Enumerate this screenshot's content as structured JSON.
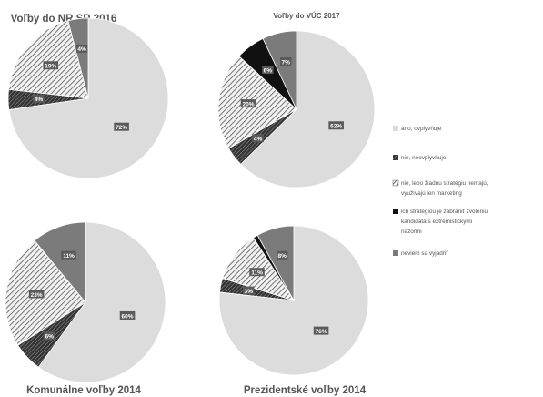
{
  "chart_data": [
    {
      "type": "pie",
      "title": "Voľby do NR SR 2016",
      "slices": [
        {
          "category": "áno, ovplyvňuje",
          "value": 72,
          "label": "72%"
        },
        {
          "category": "nie, neovplyvňuje",
          "value": 4,
          "label": "4%"
        },
        {
          "category": "nie, lebo žiadnu stratégiu nemajú, využívajú len marketing",
          "value": 19,
          "label": "19%"
        },
        {
          "category": "ich stratégiou je zabrániť zvoleniu kandidáta s extrémistickými názormi",
          "value": 0,
          "label": ""
        },
        {
          "category": "neviem sa vyjadriť",
          "value": 4,
          "label": "4%"
        }
      ]
    },
    {
      "type": "pie",
      "title": "Voľby do VÚC 2017",
      "slices": [
        {
          "category": "áno, ovplyvňuje",
          "value": 62,
          "label": "62%"
        },
        {
          "category": "nie, neovplyvňuje",
          "value": 4,
          "label": "4%"
        },
        {
          "category": "nie, lebo žiadnu stratégiu nemajú, využívajú len marketing",
          "value": 20,
          "label": "20%"
        },
        {
          "category": "ich stratégiou je zabrániť zvoleniu kandidáta s extrémistickými názormi",
          "value": 6,
          "label": "6%"
        },
        {
          "category": "neviem sa vyjadriť",
          "value": 7,
          "label": "7%"
        }
      ]
    },
    {
      "type": "pie",
      "title": "Komunálne voľby 2014",
      "slices": [
        {
          "category": "áno, ovplyvňuje",
          "value": 60,
          "label": "60%"
        },
        {
          "category": "nie, neovplyvňuje",
          "value": 6,
          "label": "6%"
        },
        {
          "category": "nie, lebo žiadnu stratégiu nemajú, využívajú len marketing",
          "value": 23,
          "label": "23%"
        },
        {
          "category": "ich stratégiou je zabrániť zvoleniu kandidáta s extrémistickými názormi",
          "value": 0,
          "label": ""
        },
        {
          "category": "neviem sa vyjadriť",
          "value": 11,
          "label": "11%"
        }
      ]
    },
    {
      "type": "pie",
      "title": "Prezidentské voľby 2014",
      "slices": [
        {
          "category": "áno, ovplyvňuje",
          "value": 76,
          "label": "76%"
        },
        {
          "category": "nie, neovplyvňuje",
          "value": 3,
          "label": "3%"
        },
        {
          "category": "nie, lebo žiadnu stratégiu nemajú, využívajú len marketing",
          "value": 11,
          "label": "11%"
        },
        {
          "category": "ich stratégiou je zabrániť zvoleniu kandidáta s extrémistickými názormi",
          "value": 1,
          "label": ""
        },
        {
          "category": "neviem sa vyjadriť",
          "value": 8,
          "label": "8%"
        }
      ]
    }
  ],
  "legend": {
    "placement": "right",
    "entries": [
      {
        "label_lines": [
          "áno, ovplyvňuje"
        ],
        "fill": "light-gray",
        "color": "#dcdcdc"
      },
      {
        "label_lines": [
          "nie, neovplyvňuje"
        ],
        "fill": "dark-diagonal-stripes",
        "color": "#3a3a3a"
      },
      {
        "label_lines": [
          "nie, lebo žiadnu stratégiu nemajú,",
          "využívajú len marketing"
        ],
        "fill": "light-diagonal-stripes",
        "color": "#555555"
      },
      {
        "label_lines": [
          "ich stratégiou je zabrániť zvoleniu",
          "kandidáta s extrémistickými",
          "názormi"
        ],
        "fill": "solid-black",
        "color": "#111111"
      },
      {
        "label_lines": [
          "neviem sa vyjadriť"
        ],
        "fill": "medium-gray",
        "color": "#7b7b7b"
      }
    ]
  },
  "colors": {
    "slice_ano": "#dcdcdc",
    "slice_neviem": "#7b7b7b",
    "slice_black": "#111111",
    "label_box": "#5a5a5a",
    "title_text": "#555555"
  }
}
